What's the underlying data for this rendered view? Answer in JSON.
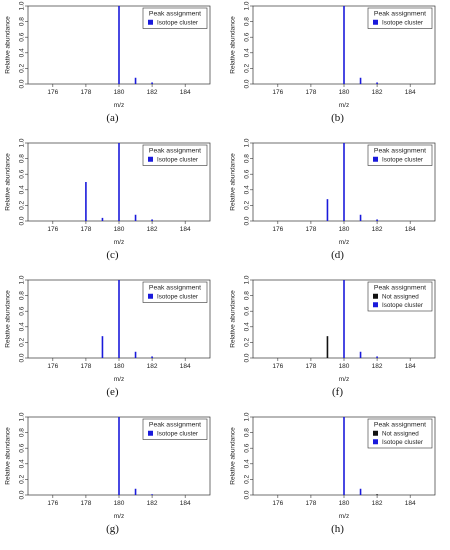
{
  "chart_data": [
    {
      "panel_label": "(a)",
      "type": "bar",
      "xlabel": "m/z",
      "ylabel": "Relative abundance",
      "xlim": [
        174.5,
        185.5
      ],
      "ylim": [
        0,
        1.0
      ],
      "x_ticks": [
        "176",
        "178",
        "180",
        "182",
        "184"
      ],
      "y_ticks": [
        "0.0",
        "0.2",
        "0.4",
        "0.6",
        "0.8",
        "1.0"
      ],
      "legend": {
        "title": "Peak assignment",
        "position": "top-right",
        "entries": [
          {
            "label": "Isotope cluster",
            "color": "#1a1adb"
          }
        ]
      },
      "series": [
        {
          "name": "Isotope cluster",
          "color": "#1a1adb",
          "points": [
            {
              "x": 180.0,
              "y": 1.0
            },
            {
              "x": 181.0,
              "y": 0.08
            },
            {
              "x": 182.0,
              "y": 0.02
            }
          ]
        }
      ]
    },
    {
      "panel_label": "(b)",
      "type": "bar",
      "xlabel": "m/z",
      "ylabel": "Relative abundance",
      "xlim": [
        174.5,
        185.5
      ],
      "ylim": [
        0,
        1.0
      ],
      "x_ticks": [
        "176",
        "178",
        "180",
        "182",
        "184"
      ],
      "y_ticks": [
        "0.0",
        "0.2",
        "0.4",
        "0.6",
        "0.8",
        "1.0"
      ],
      "legend": {
        "title": "Peak assignment",
        "position": "top-right",
        "entries": [
          {
            "label": "Isotope cluster",
            "color": "#1a1adb"
          }
        ]
      },
      "series": [
        {
          "name": "Isotope cluster",
          "color": "#1a1adb",
          "points": [
            {
              "x": 180.0,
              "y": 1.0
            },
            {
              "x": 181.0,
              "y": 0.08
            },
            {
              "x": 182.0,
              "y": 0.02
            }
          ]
        }
      ]
    },
    {
      "panel_label": "(c)",
      "type": "bar",
      "xlabel": "m/z",
      "ylabel": "Relative abundance",
      "xlim": [
        174.5,
        185.5
      ],
      "ylim": [
        0,
        1.0
      ],
      "x_ticks": [
        "176",
        "178",
        "180",
        "182",
        "184"
      ],
      "y_ticks": [
        "0.0",
        "0.2",
        "0.4",
        "0.6",
        "0.8",
        "1.0"
      ],
      "legend": {
        "title": "Peak assignment",
        "position": "top-right",
        "entries": [
          {
            "label": "Isotope cluster",
            "color": "#1a1adb"
          }
        ]
      },
      "series": [
        {
          "name": "Isotope cluster",
          "color": "#1a1adb",
          "points": [
            {
              "x": 178.0,
              "y": 0.5
            },
            {
              "x": 179.0,
              "y": 0.04
            },
            {
              "x": 180.0,
              "y": 1.0
            },
            {
              "x": 181.0,
              "y": 0.08
            },
            {
              "x": 182.0,
              "y": 0.02
            }
          ]
        }
      ]
    },
    {
      "panel_label": "(d)",
      "type": "bar",
      "xlabel": "m/z",
      "ylabel": "Relative abundance",
      "xlim": [
        174.5,
        185.5
      ],
      "ylim": [
        0,
        1.0
      ],
      "x_ticks": [
        "176",
        "178",
        "180",
        "182",
        "184"
      ],
      "y_ticks": [
        "0.0",
        "0.2",
        "0.4",
        "0.6",
        "0.8",
        "1.0"
      ],
      "legend": {
        "title": "Peak assignment",
        "position": "top-right",
        "entries": [
          {
            "label": "Isotope cluster",
            "color": "#1a1adb"
          }
        ]
      },
      "series": [
        {
          "name": "Isotope cluster",
          "color": "#1a1adb",
          "points": [
            {
              "x": 179.0,
              "y": 0.28
            },
            {
              "x": 180.0,
              "y": 1.0
            },
            {
              "x": 181.0,
              "y": 0.08
            },
            {
              "x": 182.0,
              "y": 0.02
            }
          ]
        }
      ]
    },
    {
      "panel_label": "(e)",
      "type": "bar",
      "xlabel": "m/z",
      "ylabel": "Relative abundance",
      "xlim": [
        174.5,
        185.5
      ],
      "ylim": [
        0,
        1.0
      ],
      "x_ticks": [
        "176",
        "178",
        "180",
        "182",
        "184"
      ],
      "y_ticks": [
        "0.0",
        "0.2",
        "0.4",
        "0.6",
        "0.8",
        "1.0"
      ],
      "legend": {
        "title": "Peak assignment",
        "position": "top-right",
        "entries": [
          {
            "label": "Isotope cluster",
            "color": "#1a1adb"
          }
        ]
      },
      "series": [
        {
          "name": "Isotope cluster",
          "color": "#1a1adb",
          "points": [
            {
              "x": 179.0,
              "y": 0.28
            },
            {
              "x": 180.0,
              "y": 1.0
            },
            {
              "x": 181.0,
              "y": 0.08
            },
            {
              "x": 182.0,
              "y": 0.02
            }
          ]
        }
      ]
    },
    {
      "panel_label": "(f)",
      "type": "bar",
      "xlabel": "m/z",
      "ylabel": "Relative abundance",
      "xlim": [
        174.5,
        185.5
      ],
      "ylim": [
        0,
        1.0
      ],
      "x_ticks": [
        "176",
        "178",
        "180",
        "182",
        "184"
      ],
      "y_ticks": [
        "0.0",
        "0.2",
        "0.4",
        "0.6",
        "0.8",
        "1.0"
      ],
      "legend": {
        "title": "Peak assignment",
        "position": "top-right",
        "entries": [
          {
            "label": "Not assigned",
            "color": "#111111"
          },
          {
            "label": "Isotope cluster",
            "color": "#1a1adb"
          }
        ]
      },
      "series": [
        {
          "name": "Not assigned",
          "color": "#111111",
          "points": [
            {
              "x": 179.0,
              "y": 0.28
            }
          ]
        },
        {
          "name": "Isotope cluster",
          "color": "#1a1adb",
          "points": [
            {
              "x": 180.0,
              "y": 1.0
            },
            {
              "x": 181.0,
              "y": 0.08
            },
            {
              "x": 182.0,
              "y": 0.02
            }
          ]
        }
      ]
    },
    {
      "panel_label": "(g)",
      "type": "bar",
      "xlabel": "m/z",
      "ylabel": "Relative abundance",
      "xlim": [
        174.5,
        185.5
      ],
      "ylim": [
        0,
        1.0
      ],
      "x_ticks": [
        "176",
        "178",
        "180",
        "182",
        "184"
      ],
      "y_ticks": [
        "0.0",
        "0.2",
        "0.4",
        "0.6",
        "0.8",
        "1.0"
      ],
      "legend": {
        "title": "Peak assignment",
        "position": "top-right",
        "entries": [
          {
            "label": "Isotope cluster",
            "color": "#1a1adb"
          }
        ]
      },
      "series": [
        {
          "name": "Isotope cluster",
          "color": "#1a1adb",
          "points": [
            {
              "x": 180.0,
              "y": 1.0
            },
            {
              "x": 181.0,
              "y": 0.08
            },
            {
              "x": 182.0,
              "y": 0.01
            }
          ]
        }
      ]
    },
    {
      "panel_label": "(h)",
      "type": "bar",
      "xlabel": "m/z",
      "ylabel": "Relative abundance",
      "xlim": [
        174.5,
        185.5
      ],
      "ylim": [
        0,
        1.0
      ],
      "x_ticks": [
        "176",
        "178",
        "180",
        "182",
        "184"
      ],
      "y_ticks": [
        "0.0",
        "0.2",
        "0.4",
        "0.6",
        "0.8",
        "1.0"
      ],
      "legend": {
        "title": "Peak assignment",
        "position": "top-right",
        "entries": [
          {
            "label": "Not assigned",
            "color": "#111111"
          },
          {
            "label": "Isotope cluster",
            "color": "#1a1adb"
          }
        ]
      },
      "series": [
        {
          "name": "Isotope cluster",
          "color": "#1a1adb",
          "points": [
            {
              "x": 180.0,
              "y": 1.0
            },
            {
              "x": 181.0,
              "y": 0.08
            }
          ]
        },
        {
          "name": "Not assigned",
          "color": "#111111",
          "points": [
            {
              "x": 182.0,
              "y": 0.01
            }
          ]
        }
      ]
    }
  ]
}
